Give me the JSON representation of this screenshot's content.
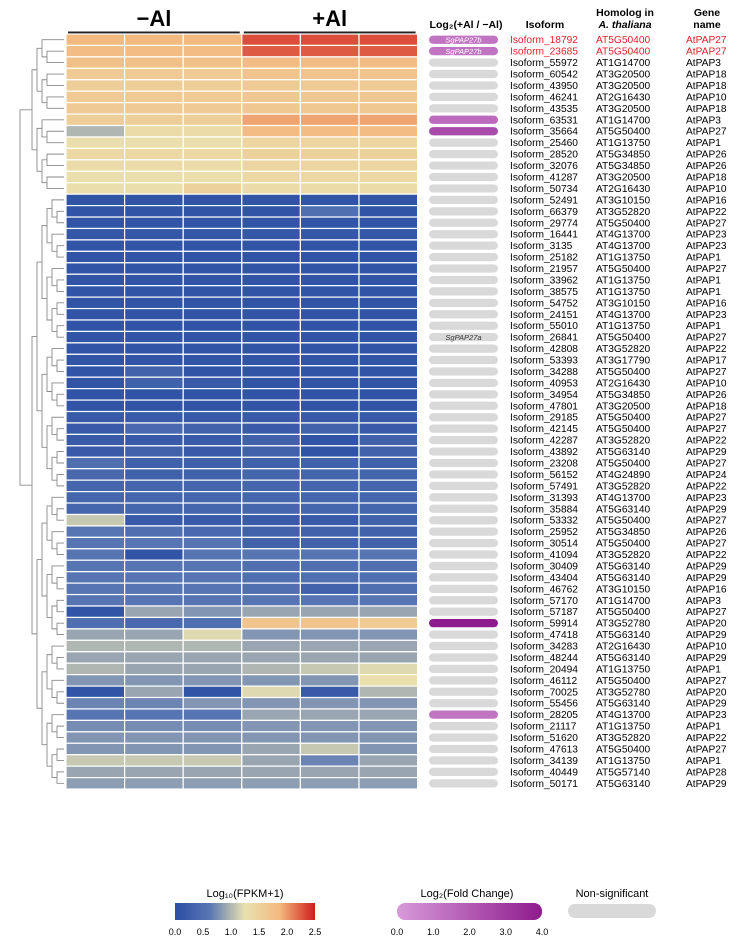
{
  "chart_data": {
    "type": "heatmap",
    "groups": [
      {
        "label": "−Al",
        "columns": 3
      },
      {
        "label": "+Al",
        "columns": 3
      }
    ],
    "column_headers": {
      "fold_change": "Log₂(+Al / −Al)",
      "isoform": "Isoform",
      "homolog_line1": "Homolog in",
      "homolog_line2": "A. thaliana",
      "gene_line1": "Gene",
      "gene_line2": "name"
    },
    "rows": [
      {
        "isoform": "Isoform_18792",
        "homolog": "AT5G50400",
        "gene": "AtPAP27",
        "fc": 1.2,
        "fc_label": "SgPAP27b",
        "highlight": true,
        "values": [
          1.85,
          1.85,
          1.85,
          2.3,
          2.3,
          2.3
        ]
      },
      {
        "isoform": "Isoform_23685",
        "homolog": "AT5G50400",
        "gene": "AtPAP27",
        "fc": 1.2,
        "fc_label": "SgPAP27b",
        "highlight": true,
        "values": [
          1.8,
          1.8,
          1.8,
          2.25,
          2.25,
          2.25
        ]
      },
      {
        "isoform": "Isoform_55972",
        "homolog": "AT1G14700",
        "gene": "AtPAP3",
        "fc": null,
        "values": [
          1.75,
          1.75,
          1.75,
          1.8,
          1.8,
          1.8
        ]
      },
      {
        "isoform": "Isoform_60542",
        "homolog": "AT3G20500",
        "gene": "AtPAP18",
        "fc": null,
        "values": [
          1.6,
          1.6,
          1.6,
          1.7,
          1.7,
          1.7
        ]
      },
      {
        "isoform": "Isoform_43950",
        "homolog": "AT3G20500",
        "gene": "AtPAP18",
        "fc": null,
        "values": [
          1.55,
          1.55,
          1.55,
          1.6,
          1.6,
          1.6
        ]
      },
      {
        "isoform": "Isoform_46241",
        "homolog": "AT2G16430",
        "gene": "AtPAP10",
        "fc": null,
        "values": [
          1.6,
          1.6,
          1.6,
          1.65,
          1.65,
          1.65
        ]
      },
      {
        "isoform": "Isoform_43535",
        "homolog": "AT3G20500",
        "gene": "AtPAP18",
        "fc": null,
        "values": [
          1.6,
          1.6,
          1.6,
          1.65,
          1.65,
          1.65
        ]
      },
      {
        "isoform": "Isoform_63531",
        "homolog": "AT1G14700",
        "gene": "AtPAP3",
        "fc": 1.5,
        "values": [
          1.55,
          1.55,
          1.55,
          1.95,
          1.95,
          1.95
        ]
      },
      {
        "isoform": "Isoform_35664",
        "homolog": "AT5G50400",
        "gene": "AtPAP27",
        "fc": 2.5,
        "values": [
          1.0,
          1.35,
          1.35,
          1.8,
          1.8,
          1.8
        ]
      },
      {
        "isoform": "Isoform_25460",
        "homolog": "AT1G13750",
        "gene": "AtPAP1",
        "fc": null,
        "values": [
          1.3,
          1.3,
          1.3,
          1.45,
          1.45,
          1.45
        ]
      },
      {
        "isoform": "Isoform_28520",
        "homolog": "AT5G34850",
        "gene": "AtPAP26",
        "fc": null,
        "values": [
          1.4,
          1.4,
          1.4,
          1.5,
          1.5,
          1.5
        ]
      },
      {
        "isoform": "Isoform_32076",
        "homolog": "AT5G34850",
        "gene": "AtPAP26",
        "fc": null,
        "values": [
          1.35,
          1.35,
          1.35,
          1.45,
          1.45,
          1.45
        ]
      },
      {
        "isoform": "Isoform_41287",
        "homolog": "AT3G20500",
        "gene": "AtPAP18",
        "fc": null,
        "values": [
          1.3,
          1.3,
          1.3,
          1.4,
          1.4,
          1.4
        ]
      },
      {
        "isoform": "Isoform_50734",
        "homolog": "AT2G16430",
        "gene": "AtPAP10",
        "fc": null,
        "values": [
          1.3,
          1.3,
          1.5,
          1.35,
          1.35,
          1.35
        ]
      },
      {
        "isoform": "Isoform_52491",
        "homolog": "AT3G10150",
        "gene": "AtPAP16",
        "fc": null,
        "values": [
          0.1,
          0.1,
          0.1,
          0.1,
          0.1,
          0.1
        ]
      },
      {
        "isoform": "Isoform_66379",
        "homolog": "AT3G52820",
        "gene": "AtPAP22",
        "fc": null,
        "values": [
          0.1,
          0.1,
          0.1,
          0.1,
          0.5,
          0.1
        ]
      },
      {
        "isoform": "Isoform_29774",
        "homolog": "AT5G50400",
        "gene": "AtPAP27",
        "fc": null,
        "values": [
          0.1,
          0.1,
          0.1,
          0.1,
          0.1,
          0.1
        ]
      },
      {
        "isoform": "Isoform_16441",
        "homolog": "AT4G13700",
        "gene": "AtPAP23",
        "fc": null,
        "values": [
          0.15,
          0.15,
          0.15,
          0.15,
          0.15,
          0.15
        ]
      },
      {
        "isoform": "Isoform_3135",
        "homolog": "AT4G13700",
        "gene": "AtPAP23",
        "fc": null,
        "values": [
          0.1,
          0.1,
          0.1,
          0.1,
          0.1,
          0.1
        ]
      },
      {
        "isoform": "Isoform_25182",
        "homolog": "AT1G13750",
        "gene": "AtPAP1",
        "fc": null,
        "values": [
          0.1,
          0.1,
          0.1,
          0.1,
          0.1,
          0.1
        ]
      },
      {
        "isoform": "Isoform_21957",
        "homolog": "AT5G50400",
        "gene": "AtPAP27",
        "fc": null,
        "values": [
          0.1,
          0.1,
          0.1,
          0.1,
          0.1,
          0.1
        ]
      },
      {
        "isoform": "Isoform_33962",
        "homolog": "AT1G13750",
        "gene": "AtPAP1",
        "fc": null,
        "values": [
          0.1,
          0.1,
          0.1,
          0.1,
          0.1,
          0.1
        ]
      },
      {
        "isoform": "Isoform_38575",
        "homolog": "AT1G13750",
        "gene": "AtPAP1",
        "fc": null,
        "values": [
          0.1,
          0.1,
          0.1,
          0.1,
          0.1,
          0.1
        ]
      },
      {
        "isoform": "Isoform_54752",
        "homolog": "AT3G10150",
        "gene": "AtPAP16",
        "fc": null,
        "values": [
          0.1,
          0.1,
          0.1,
          0.1,
          0.1,
          0.1
        ]
      },
      {
        "isoform": "Isoform_24151",
        "homolog": "AT4G13700",
        "gene": "AtPAP23",
        "fc": null,
        "values": [
          0.1,
          0.1,
          0.1,
          0.1,
          0.1,
          0.1
        ]
      },
      {
        "isoform": "Isoform_55010",
        "homolog": "AT1G13750",
        "gene": "AtPAP1",
        "fc": null,
        "values": [
          0.1,
          0.1,
          0.1,
          0.1,
          0.1,
          0.1
        ]
      },
      {
        "isoform": "Isoform_26841",
        "homolog": "AT5G50400",
        "gene": "AtPAP27",
        "fc": null,
        "fc_label": "SgPAP27a",
        "values": [
          0.1,
          0.1,
          0.1,
          0.1,
          0.1,
          0.1
        ]
      },
      {
        "isoform": "Isoform_42808",
        "homolog": "AT3G52820",
        "gene": "AtPAP22",
        "fc": null,
        "values": [
          0.1,
          0.1,
          0.1,
          0.1,
          0.1,
          0.1
        ]
      },
      {
        "isoform": "Isoform_53393",
        "homolog": "AT3G17790",
        "gene": "AtPAP17",
        "fc": null,
        "values": [
          0.1,
          0.1,
          0.1,
          0.1,
          0.1,
          0.1
        ]
      },
      {
        "isoform": "Isoform_34288",
        "homolog": "AT5G50400",
        "gene": "AtPAP27",
        "fc": null,
        "values": [
          0.1,
          0.3,
          0.1,
          0.1,
          0.1,
          0.1
        ]
      },
      {
        "isoform": "Isoform_40953",
        "homolog": "AT2G16430",
        "gene": "AtPAP10",
        "fc": null,
        "values": [
          0.1,
          0.3,
          0.2,
          0.1,
          0.1,
          0.1
        ]
      },
      {
        "isoform": "Isoform_34954",
        "homolog": "AT5G34850",
        "gene": "AtPAP26",
        "fc": null,
        "values": [
          0.1,
          0.1,
          0.1,
          0.1,
          0.1,
          0.1
        ]
      },
      {
        "isoform": "Isoform_47801",
        "homolog": "AT3G20500",
        "gene": "AtPAP18",
        "fc": null,
        "values": [
          0.1,
          0.1,
          0.1,
          0.1,
          0.1,
          0.1
        ]
      },
      {
        "isoform": "Isoform_29185",
        "homolog": "AT5G50400",
        "gene": "AtPAP27",
        "fc": null,
        "values": [
          0.2,
          0.2,
          0.2,
          0.2,
          0.2,
          0.2
        ]
      },
      {
        "isoform": "Isoform_42145",
        "homolog": "AT5G50400",
        "gene": "AtPAP27",
        "fc": null,
        "values": [
          0.2,
          0.4,
          0.3,
          0.2,
          0.3,
          0.2
        ]
      },
      {
        "isoform": "Isoform_42287",
        "homolog": "AT3G52820",
        "gene": "AtPAP22",
        "fc": null,
        "values": [
          0.2,
          0.2,
          0.2,
          0.3,
          0.1,
          0.3
        ]
      },
      {
        "isoform": "Isoform_43892",
        "homolog": "AT5G63140",
        "gene": "AtPAP29",
        "fc": null,
        "values": [
          0.2,
          0.3,
          0.2,
          0.3,
          0.1,
          0.3
        ]
      },
      {
        "isoform": "Isoform_23208",
        "homolog": "AT5G50400",
        "gene": "AtPAP27",
        "fc": null,
        "values": [
          0.5,
          0.3,
          0.3,
          0.3,
          0.3,
          0.3
        ]
      },
      {
        "isoform": "Isoform_56152",
        "homolog": "AT4G24890",
        "gene": "AtPAP24",
        "fc": null,
        "values": [
          0.4,
          0.3,
          0.3,
          0.35,
          0.35,
          0.35
        ]
      },
      {
        "isoform": "Isoform_57491",
        "homolog": "AT3G52820",
        "gene": "AtPAP22",
        "fc": null,
        "values": [
          0.35,
          0.35,
          0.35,
          0.35,
          0.35,
          0.35
        ]
      },
      {
        "isoform": "Isoform_31393",
        "homolog": "AT4G13700",
        "gene": "AtPAP23",
        "fc": null,
        "values": [
          0.35,
          0.35,
          0.35,
          0.35,
          0.35,
          0.35
        ]
      },
      {
        "isoform": "Isoform_35884",
        "homolog": "AT5G63140",
        "gene": "AtPAP29",
        "fc": null,
        "values": [
          0.35,
          0.35,
          0.35,
          0.35,
          0.35,
          0.35
        ]
      },
      {
        "isoform": "Isoform_53332",
        "homolog": "AT5G50400",
        "gene": "AtPAP27",
        "fc": null,
        "values": [
          1.1,
          0.2,
          0.2,
          0.2,
          0.2,
          0.3
        ]
      },
      {
        "isoform": "Isoform_25952",
        "homolog": "AT5G34850",
        "gene": "AtPAP26",
        "fc": null,
        "values": [
          0.6,
          0.5,
          0.4,
          0.3,
          0.3,
          0.3
        ]
      },
      {
        "isoform": "Isoform_30514",
        "homolog": "AT5G50400",
        "gene": "AtPAP27",
        "fc": null,
        "values": [
          0.6,
          0.6,
          0.6,
          0.3,
          0.3,
          0.3
        ]
      },
      {
        "isoform": "Isoform_41094",
        "homolog": "AT3G52820",
        "gene": "AtPAP22",
        "fc": null,
        "values": [
          0.6,
          0.1,
          0.6,
          0.6,
          0.6,
          0.6
        ]
      },
      {
        "isoform": "Isoform_30409",
        "homolog": "AT5G63140",
        "gene": "AtPAP29",
        "fc": null,
        "values": [
          0.6,
          0.6,
          0.6,
          0.5,
          0.5,
          0.5
        ]
      },
      {
        "isoform": "Isoform_43404",
        "homolog": "AT5G63140",
        "gene": "AtPAP29",
        "fc": null,
        "values": [
          0.6,
          0.6,
          0.6,
          0.5,
          0.5,
          0.5
        ]
      },
      {
        "isoform": "Isoform_46762",
        "homolog": "AT3G10150",
        "gene": "AtPAP16",
        "fc": null,
        "values": [
          0.6,
          0.6,
          0.6,
          0.5,
          0.3,
          0.5
        ]
      },
      {
        "isoform": "Isoform_57170",
        "homolog": "AT1G14700",
        "gene": "AtPAP3",
        "fc": null,
        "values": [
          0.6,
          0.6,
          0.6,
          0.6,
          0.6,
          0.6
        ]
      },
      {
        "isoform": "Isoform_57187",
        "homolog": "AT5G50400",
        "gene": "AtPAP27",
        "fc": null,
        "values": [
          0.1,
          0.9,
          0.8,
          0.9,
          0.9,
          0.9
        ]
      },
      {
        "isoform": "Isoform_59914",
        "homolog": "AT3G52780",
        "gene": "AtPAP20",
        "fc": 4.0,
        "values": [
          0.5,
          0.4,
          0.5,
          1.7,
          1.7,
          1.6
        ]
      },
      {
        "isoform": "Isoform_47418",
        "homolog": "AT5G63140",
        "gene": "AtPAP29",
        "fc": null,
        "values": [
          0.9,
          0.9,
          1.2,
          0.8,
          0.8,
          0.8
        ]
      },
      {
        "isoform": "Isoform_34283",
        "homolog": "AT2G16430",
        "gene": "AtPAP10",
        "fc": null,
        "values": [
          1.0,
          1.0,
          1.0,
          0.9,
          0.9,
          0.9
        ]
      },
      {
        "isoform": "Isoform_48244",
        "homolog": "AT5G63140",
        "gene": "AtPAP29",
        "fc": null,
        "values": [
          0.9,
          0.9,
          0.9,
          0.9,
          0.9,
          0.9
        ]
      },
      {
        "isoform": "Isoform_20494",
        "homolog": "AT1G13750",
        "gene": "AtPAP1",
        "fc": null,
        "values": [
          1.0,
          0.9,
          0.9,
          1.0,
          1.1,
          1.2
        ]
      },
      {
        "isoform": "Isoform_46112",
        "homolog": "AT5G50400",
        "gene": "AtPAP27",
        "fc": null,
        "values": [
          0.8,
          0.8,
          0.8,
          0.8,
          0.8,
          1.3
        ]
      },
      {
        "isoform": "Isoform_70025",
        "homolog": "AT3G52780",
        "gene": "AtPAP20",
        "fc": null,
        "values": [
          0.1,
          0.9,
          0.1,
          1.2,
          0.2,
          1.0
        ]
      },
      {
        "isoform": "Isoform_55456",
        "homolog": "AT5G63140",
        "gene": "AtPAP29",
        "fc": null,
        "values": [
          0.7,
          0.7,
          0.8,
          0.8,
          0.8,
          0.8
        ]
      },
      {
        "isoform": "Isoform_28205",
        "homolog": "AT4G13700",
        "gene": "AtPAP23",
        "fc": 1.2,
        "values": [
          0.6,
          0.6,
          0.6,
          0.9,
          0.9,
          0.9
        ]
      },
      {
        "isoform": "Isoform_21117",
        "homolog": "AT1G13750",
        "gene": "AtPAP1",
        "fc": null,
        "values": [
          0.75,
          0.75,
          0.75,
          0.8,
          0.8,
          0.8
        ]
      },
      {
        "isoform": "Isoform_51620",
        "homolog": "AT3G52820",
        "gene": "AtPAP22",
        "fc": null,
        "values": [
          0.8,
          0.8,
          0.8,
          0.8,
          0.8,
          0.8
        ]
      },
      {
        "isoform": "Isoform_47613",
        "homolog": "AT5G50400",
        "gene": "AtPAP27",
        "fc": null,
        "values": [
          0.8,
          0.8,
          0.8,
          0.9,
          1.1,
          0.8
        ]
      },
      {
        "isoform": "Isoform_34139",
        "homolog": "AT1G13750",
        "gene": "AtPAP1",
        "fc": null,
        "values": [
          1.1,
          1.1,
          1.1,
          0.9,
          0.7,
          0.9
        ]
      },
      {
        "isoform": "Isoform_40449",
        "homolog": "AT5G57140",
        "gene": "AtPAP28",
        "fc": null,
        "values": [
          0.9,
          0.9,
          0.9,
          0.9,
          0.9,
          0.9
        ]
      },
      {
        "isoform": "Isoform_50171",
        "homolog": "AT5G63140",
        "gene": "AtPAP29",
        "fc": null,
        "values": [
          0.85,
          0.85,
          0.85,
          0.85,
          0.85,
          0.85
        ]
      }
    ],
    "expression_scale": {
      "title": "Log₁₀(FPKM+1)",
      "range": [
        0,
        2.5
      ],
      "ticks": [
        "0.0",
        "0.5",
        "1.0",
        "1.5",
        "2.0",
        "2.5"
      ],
      "colors": [
        "#2a4da3",
        "#5a77b4",
        "#e9e2b0",
        "#f3b87e",
        "#d01c1c"
      ]
    },
    "fold_scale": {
      "title": "Log₂(Fold Change)",
      "range": [
        0,
        4
      ],
      "ticks": [
        "0.0",
        "1.0",
        "2.0",
        "3.0",
        "4.0"
      ],
      "colors": [
        "#d79ad9",
        "#8e1b8d"
      ]
    },
    "nonsig": {
      "label": "Non-significant",
      "color": "#d9d9d9"
    },
    "highlight_color": "#e5202a"
  }
}
